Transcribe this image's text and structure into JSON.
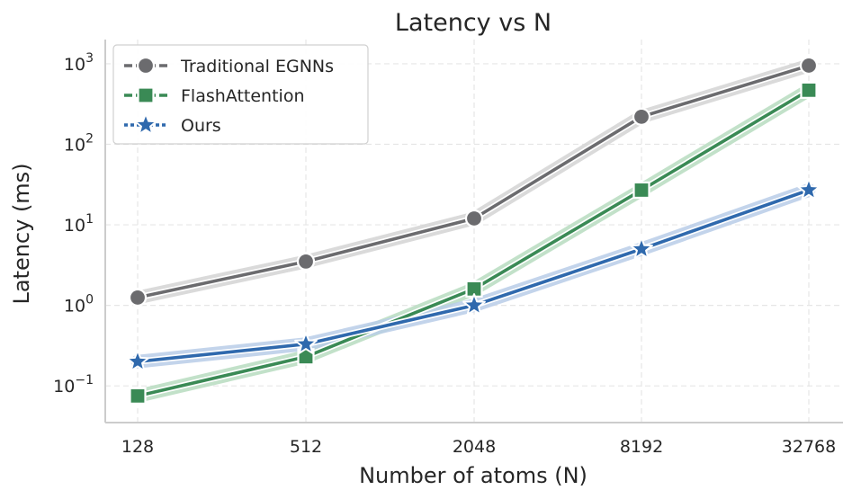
{
  "chart_data": {
    "type": "line",
    "title": "Latency vs N",
    "xlabel": "Number of atoms (N)",
    "ylabel": "Latency (ms)",
    "x_scale": "log2",
    "y_scale": "log10",
    "x": [
      128,
      512,
      2048,
      8192,
      32768
    ],
    "x_tick_labels": [
      "128",
      "512",
      "2048",
      "8192",
      "32768"
    ],
    "y_ticks": [
      {
        "value": 0.1,
        "base": "10",
        "exp": "−1"
      },
      {
        "value": 1,
        "base": "10",
        "exp": "0"
      },
      {
        "value": 10,
        "base": "10",
        "exp": "1"
      },
      {
        "value": 100,
        "base": "10",
        "exp": "2"
      },
      {
        "value": 1000,
        "base": "10",
        "exp": "3"
      }
    ],
    "ylim": [
      0.035,
      2000
    ],
    "grid": true,
    "legend_position": "top-left",
    "series": [
      {
        "name": "Traditional EGNNs",
        "color": "#6b6b6e",
        "band_color": "#d3d3d3",
        "marker": "circle",
        "values": [
          1.25,
          3.5,
          12,
          220,
          950
        ]
      },
      {
        "name": "FlashAttention",
        "color": "#3a8a55",
        "band_color": "#b7dcc0",
        "marker": "square",
        "values": [
          0.075,
          0.23,
          1.6,
          27,
          470
        ]
      },
      {
        "name": "Ours",
        "color": "#2f69ad",
        "band_color": "#b9cde8",
        "marker": "star",
        "values": [
          0.2,
          0.33,
          1.0,
          5.0,
          27
        ]
      }
    ]
  }
}
